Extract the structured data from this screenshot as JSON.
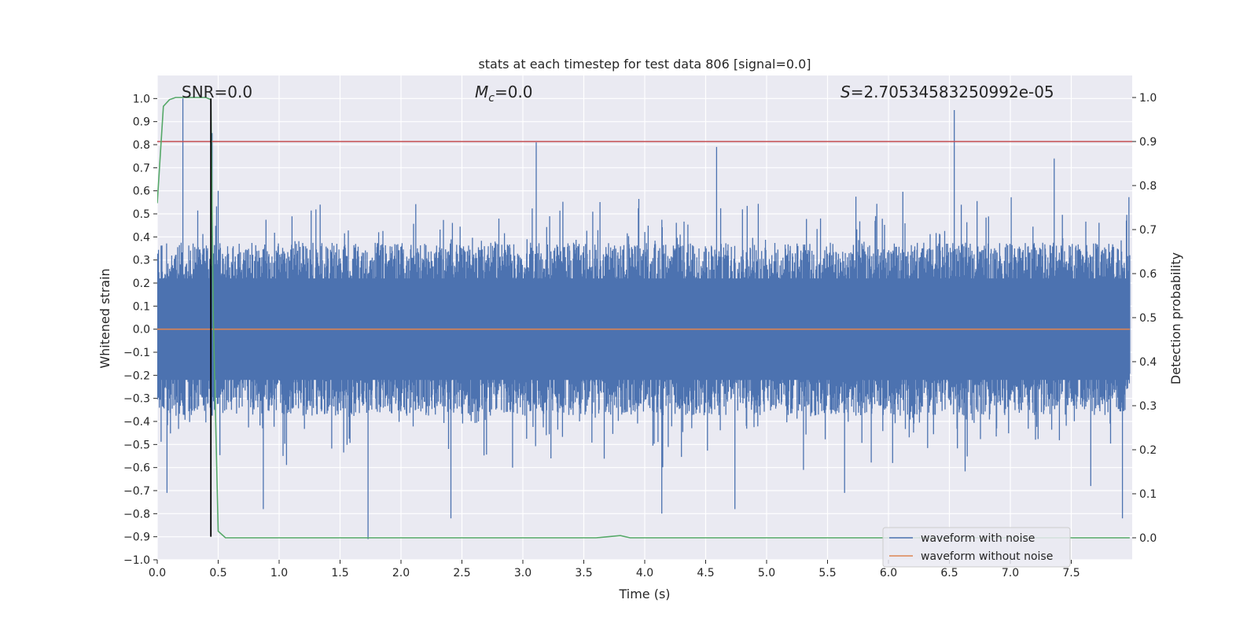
{
  "chart_data": {
    "type": "line",
    "title": "stats at each timestep for test data 806 [signal=0.0]",
    "xlabel": "Time (s)",
    "ylabel_left": "Whitened strain",
    "ylabel_right": "Detection probability",
    "xlim": [
      0.0,
      8.0
    ],
    "ylim_left": [
      -1.0,
      1.1
    ],
    "ylim_right": [
      -0.05,
      1.05
    ],
    "x_ticks": [
      "0.0",
      "0.5",
      "1.0",
      "1.5",
      "2.0",
      "2.5",
      "3.0",
      "3.5",
      "4.0",
      "4.5",
      "5.0",
      "5.5",
      "6.0",
      "6.5",
      "7.0",
      "7.5"
    ],
    "y_left_ticks": [
      "1.0",
      "0.9",
      "0.8",
      "0.7",
      "0.6",
      "0.5",
      "0.4",
      "0.3",
      "0.2",
      "0.1",
      "0.0",
      "−0.1",
      "−0.2",
      "−0.3",
      "−0.4",
      "−0.5",
      "−0.6",
      "−0.7",
      "−0.8",
      "−0.9",
      "−1.0"
    ],
    "y_right_ticks": [
      "1.0",
      "0.9",
      "0.8",
      "0.7",
      "0.6",
      "0.5",
      "0.4",
      "0.3",
      "0.2",
      "0.1",
      "0.0"
    ],
    "grid": true,
    "annotations": {
      "snr": "SNR=0.0",
      "mc_symbol": "M",
      "mc_sub": "c",
      "mc_value": "=0.0",
      "s_symbol": "S",
      "s_value": "=2.70534583250992e-05"
    },
    "legend": {
      "position": "lower-right",
      "entries": [
        {
          "label": "waveform with noise",
          "color": "#4c72b0"
        },
        {
          "label": "waveform without noise",
          "color": "#dd8452"
        }
      ]
    },
    "series": [
      {
        "name": "waveform with noise",
        "axis": "left",
        "color": "#4c72b0",
        "kind": "noise",
        "t_range": [
          0.0,
          7.98
        ],
        "typical_amplitude": 0.25,
        "spikes": [
          {
            "t": 0.21,
            "y": 1.0
          },
          {
            "t": 0.45,
            "y": 0.85
          },
          {
            "t": 0.08,
            "y": -0.71
          },
          {
            "t": 0.87,
            "y": -0.78
          },
          {
            "t": 1.73,
            "y": -0.91
          },
          {
            "t": 2.41,
            "y": -0.82
          },
          {
            "t": 3.11,
            "y": 0.81
          },
          {
            "t": 4.14,
            "y": -0.8
          },
          {
            "t": 4.59,
            "y": 0.79
          },
          {
            "t": 4.74,
            "y": -0.78
          },
          {
            "t": 5.64,
            "y": -0.71
          },
          {
            "t": 6.54,
            "y": 0.95
          },
          {
            "t": 7.36,
            "y": 0.74
          },
          {
            "t": 7.92,
            "y": -0.82
          },
          {
            "t": 7.66,
            "y": -0.68
          },
          {
            "t": 0.5,
            "y": 0.6
          }
        ]
      },
      {
        "name": "waveform without noise",
        "axis": "left",
        "color": "#dd8452",
        "x": [
          0.0,
          7.98
        ],
        "y": [
          0.0,
          0.0
        ]
      },
      {
        "name": "detection probability",
        "axis": "right",
        "color": "#55a868",
        "x": [
          0.0,
          0.05,
          0.1,
          0.15,
          0.2,
          0.3,
          0.4,
          0.44,
          0.46,
          0.5,
          0.56,
          1.0,
          2.0,
          3.0,
          3.6,
          3.8,
          3.88,
          4.5,
          5.5,
          6.5,
          7.5,
          7.98
        ],
        "y": [
          0.76,
          0.98,
          0.995,
          1.0,
          1.0,
          1.0,
          1.0,
          0.995,
          0.5,
          0.015,
          0.0,
          0.0,
          0.0,
          0.0,
          0.0,
          0.005,
          0.0,
          0.0,
          0.0,
          0.0,
          0.0,
          0.0
        ]
      }
    ],
    "threshold_line": {
      "axis": "right",
      "y": 0.9,
      "color": "#c44e52"
    },
    "vertical_line": {
      "x": 0.44,
      "y_from": -0.9,
      "y_to": 1.0,
      "color": "#000000"
    }
  }
}
